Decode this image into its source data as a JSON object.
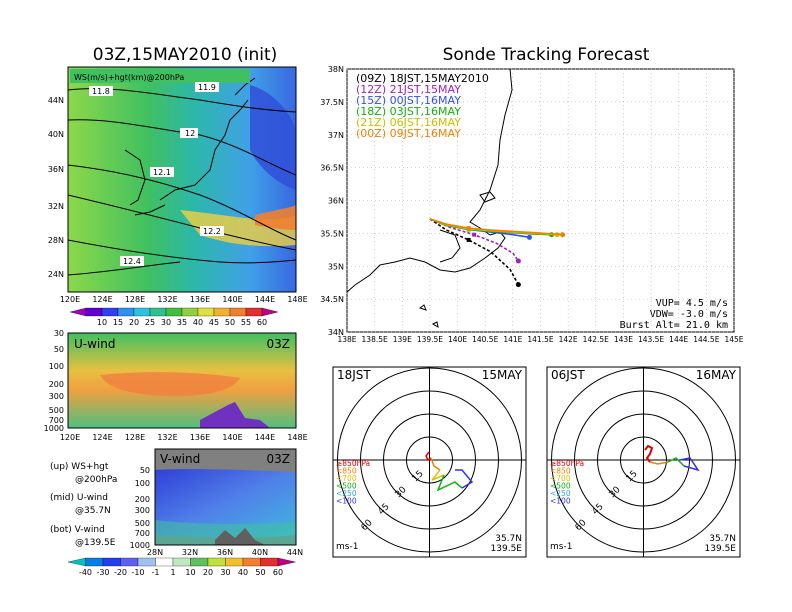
{
  "left_title": "03Z,15MAY2010 (init)",
  "right_title": "Sonde Tracking Forecast",
  "colors": {
    "track_09Z": "#000000",
    "track_12Z": "#a020c0",
    "track_15Z": "#3050f0",
    "track_18Z": "#10b010",
    "track_21Z": "#c8c000",
    "track_00Z": "#f08000"
  },
  "chart_data": [
    {
      "type": "heatmap",
      "panel": "upper-map",
      "title": "WS(m/s)+hgt(km)@200hPa",
      "x_tick_labels": [
        "120E",
        "124E",
        "128E",
        "132E",
        "136E",
        "140E",
        "144E",
        "148E"
      ],
      "y_tick_labels": [
        "24N",
        "28N",
        "32N",
        "36N",
        "40N",
        "44N"
      ],
      "contour_labels": [
        "11.8",
        "11.9",
        "12",
        "12.1",
        "12.2",
        "12.4"
      ],
      "colorbar_ticks": [
        "10",
        "15",
        "20",
        "25",
        "30",
        "35",
        "40",
        "45",
        "50",
        "55",
        "60"
      ]
    },
    {
      "type": "heatmap",
      "panel": "u-wind-cross-section",
      "label": "U-wind",
      "time_label": "03Z",
      "x_tick_labels": [
        "120E",
        "124E",
        "128E",
        "132E",
        "136E",
        "140E",
        "144E",
        "148E"
      ],
      "y_tick_labels": [
        "30",
        "50",
        "100",
        "200",
        "300",
        "500",
        "700",
        "1000"
      ]
    },
    {
      "type": "heatmap",
      "panel": "v-wind-cross-section",
      "label": "V-wind",
      "time_label": "03Z",
      "x_tick_labels": [
        "28N",
        "32N",
        "36N",
        "40N",
        "44N"
      ],
      "y_tick_labels": [
        "50",
        "100",
        "200",
        "300",
        "500",
        "700",
        "1000"
      ],
      "colorbar_ticks": [
        "-40",
        "-30",
        "-20",
        "-10",
        "-1",
        "1",
        "10",
        "20",
        "30",
        "40",
        "50",
        "60"
      ]
    },
    {
      "type": "line",
      "panel": "sonde-tracks",
      "x_tick_labels": [
        "138E",
        "138.5E",
        "139E",
        "139.5E",
        "140E",
        "140.5E",
        "141E",
        "141.5E",
        "142E",
        "142.5E",
        "143E",
        "143.5E",
        "144E",
        "144.5E",
        "145E"
      ],
      "y_tick_labels": [
        "34N",
        "34.5N",
        "35N",
        "35.5N",
        "36N",
        "36.5N",
        "37N",
        "37.5N",
        "38N"
      ],
      "xlim": [
        138,
        145
      ],
      "ylim": [
        34,
        38
      ],
      "legend_placement": "top-left",
      "series": [
        {
          "name": "(09Z) 18JST,15MAY2010",
          "color_key": "track_09Z",
          "x": [
            139.5,
            139.8,
            140.2,
            140.6,
            140.95,
            141.1
          ],
          "y": [
            35.72,
            35.55,
            35.4,
            35.22,
            34.95,
            34.72
          ]
        },
        {
          "name": "(12Z) 21JST,15MAY",
          "color_key": "track_12Z",
          "x": [
            139.5,
            139.9,
            140.3,
            140.7,
            141.0,
            141.1
          ],
          "y": [
            35.72,
            35.58,
            35.48,
            35.35,
            35.2,
            35.08
          ]
        },
        {
          "name": "(15Z) 00JST,16MAY",
          "color_key": "track_15Z",
          "x": [
            139.5,
            139.8,
            140.2,
            140.6,
            141.0,
            141.3
          ],
          "y": [
            35.72,
            35.62,
            35.56,
            35.52,
            35.48,
            35.44
          ]
        },
        {
          "name": "(18Z) 03JST,16MAY",
          "color_key": "track_18Z",
          "x": [
            139.5,
            139.8,
            140.2,
            140.6,
            141.0,
            141.4,
            141.7
          ],
          "y": [
            35.72,
            35.62,
            35.56,
            35.53,
            35.51,
            35.49,
            35.48
          ]
        },
        {
          "name": "(21Z) 06JST,16MAY",
          "color_key": "track_21Z",
          "x": [
            139.5,
            139.8,
            140.2,
            140.6,
            141.0,
            141.4,
            141.8
          ],
          "y": [
            35.72,
            35.63,
            35.57,
            35.54,
            35.52,
            35.5,
            35.48
          ]
        },
        {
          "name": "(00Z) 09JST,16MAY",
          "color_key": "track_00Z",
          "x": [
            139.5,
            139.8,
            140.2,
            140.6,
            141.0,
            141.4,
            141.9
          ],
          "y": [
            35.72,
            35.64,
            35.58,
            35.55,
            35.53,
            35.51,
            35.48
          ]
        }
      ],
      "annotations": [
        "VUP= 4.5 m/s",
        "VDW= -3.0 m/s",
        "Burst Alt= 21.0 km"
      ]
    },
    {
      "type": "polar",
      "panel": "hodograph-18JST",
      "left_label": "18JST",
      "right_label": "15MAY",
      "ring_labels": [
        "15",
        "30",
        "45",
        "60"
      ],
      "level_legend": [
        "≥850hPa",
        "<850",
        "<700",
        "<500",
        "<250",
        "<100"
      ],
      "unit": "ms-1",
      "location": [
        "35.7N",
        "139.5E"
      ]
    },
    {
      "type": "polar",
      "panel": "hodograph-06JST",
      "left_label": "06JST",
      "right_label": "16MAY",
      "ring_labels": [
        "15",
        "30",
        "45",
        "60"
      ],
      "level_legend": [
        "≥850hPa",
        "<850",
        "<700",
        "<500",
        "<250",
        "<100"
      ],
      "unit": "ms-1",
      "location": [
        "35.7N",
        "139.5E"
      ]
    }
  ],
  "side_legend": [
    {
      "label": "(up) WS+hgt",
      "sub": "@200hPa"
    },
    {
      "label": "(mid) U-wind",
      "sub": "@35.7N"
    },
    {
      "label": "(bot) V-wind",
      "sub": "@139.5E"
    }
  ]
}
